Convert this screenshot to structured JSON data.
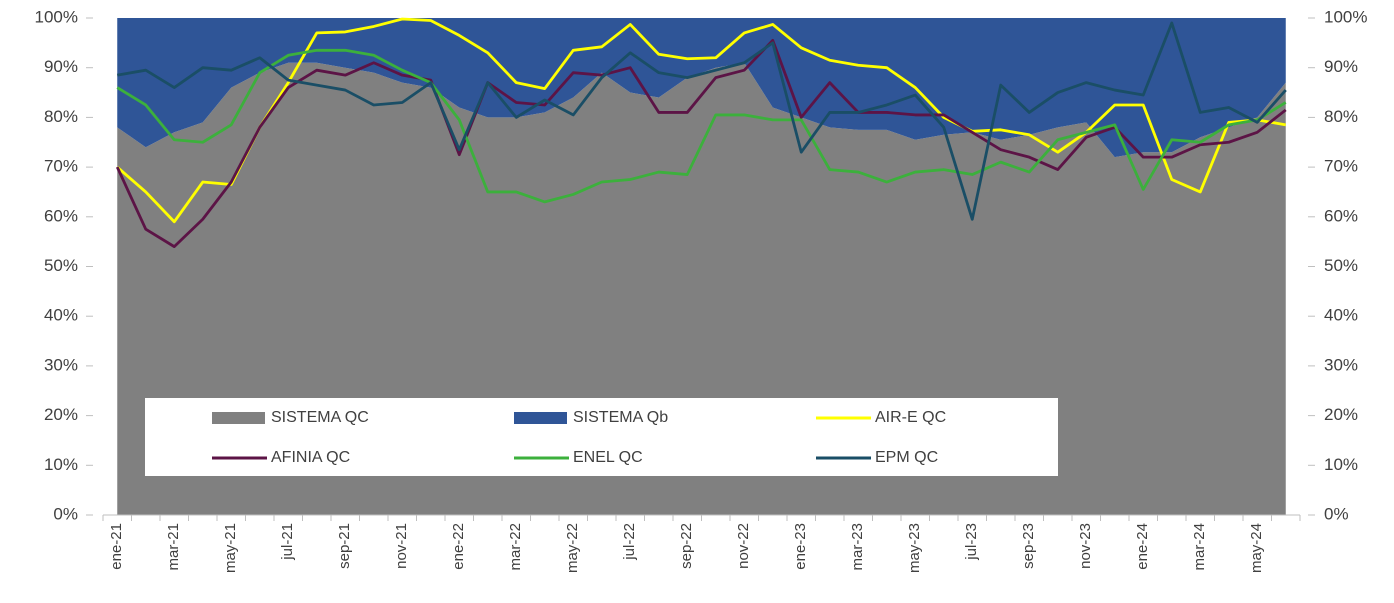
{
  "chart_data": {
    "type": "area",
    "stacked": true,
    "categories": [
      "ene-21",
      null,
      "mar-21",
      null,
      "may-21",
      null,
      "jul-21",
      null,
      "sep-21",
      null,
      "nov-21",
      null,
      "ene-22",
      null,
      "mar-22",
      null,
      "may-22",
      null,
      "jul-22",
      null,
      "sep-22",
      null,
      "nov-22",
      null,
      "ene-23",
      null,
      "mar-23",
      null,
      "may-23",
      null,
      "jul-23",
      null,
      "sep-23",
      null,
      "nov-23",
      null,
      "ene-24",
      null,
      "mar-24",
      null,
      "may-24",
      null
    ],
    "series": [
      {
        "name": "SISTEMA QC",
        "type": "area",
        "color": "#808080",
        "values": [
          78,
          74,
          77,
          79,
          86,
          89,
          91,
          91,
          90,
          89,
          87,
          86,
          82,
          80,
          80,
          81,
          84,
          89,
          85,
          84,
          88,
          90,
          91,
          82,
          80,
          78,
          77.5,
          77.5,
          75.5,
          76.5,
          77,
          75.5,
          76.5,
          78,
          79,
          72,
          73,
          73,
          76,
          78,
          80,
          87
        ]
      },
      {
        "name": "SISTEMA Qb",
        "type": "area",
        "color": "#2f5597",
        "values": [
          22,
          26,
          23,
          21,
          14,
          11,
          9,
          9,
          10,
          11,
          13,
          14,
          18,
          20,
          20,
          19,
          16,
          11,
          15,
          16,
          12,
          10,
          9,
          18,
          20,
          22,
          22.5,
          22.5,
          24.5,
          23.5,
          23,
          24.5,
          23.5,
          22,
          21,
          28,
          27,
          27,
          24,
          22,
          20,
          13
        ]
      },
      {
        "name": "AIR-E QC",
        "type": "line",
        "axis": "y2",
        "color": "#ffff00",
        "values": [
          70,
          65,
          59,
          67,
          66.5,
          78,
          87,
          97,
          97.2,
          98.3,
          99.8,
          99.5,
          96.5,
          93,
          87,
          85.8,
          93.5,
          94.2,
          98.7,
          92.7,
          91.8,
          92,
          97,
          98.7,
          94,
          91.5,
          90.5,
          90,
          86,
          80,
          77.2,
          77.5,
          76.5,
          73,
          77,
          82.5,
          82.5,
          67.5,
          65,
          79,
          79.5,
          78.5
        ]
      },
      {
        "name": "AFINIA QC",
        "type": "line",
        "axis": "y2",
        "color": "#5c1446",
        "values": [
          70,
          57.5,
          54,
          59.5,
          67,
          78,
          86,
          89.5,
          88.5,
          91,
          88.5,
          87.5,
          72.5,
          87,
          83,
          82.5,
          89,
          88.5,
          90,
          81,
          81,
          88,
          89.5,
          95.5,
          80,
          87,
          81,
          81,
          80.5,
          80.5,
          77,
          73.5,
          72,
          69.5,
          76,
          78,
          72,
          72,
          74.5,
          75,
          77,
          81.5
        ]
      },
      {
        "name": "ENEL QC",
        "type": "line",
        "axis": "y2",
        "color": "#3cb03c",
        "values": [
          86,
          82.5,
          75.5,
          75,
          78.5,
          89,
          92.5,
          93.5,
          93.5,
          92.5,
          89.5,
          87,
          79.5,
          65,
          65,
          63,
          64.5,
          67,
          67.5,
          69,
          68.5,
          80.5,
          80.5,
          79.5,
          79.5,
          69.5,
          69,
          67,
          69,
          69.5,
          68.5,
          71,
          69,
          75.5,
          77,
          78.5,
          65.5,
          75.5,
          75,
          78.5,
          79.5,
          83
        ]
      },
      {
        "name": "EPM QC",
        "type": "line",
        "axis": "y2",
        "color": "#1a4e66",
        "values": [
          88.5,
          89.5,
          86,
          90,
          89.5,
          92,
          87.5,
          86.5,
          85.5,
          82.5,
          83,
          87,
          73.5,
          87,
          80,
          83.5,
          80.5,
          88,
          93,
          89,
          88,
          89.5,
          91,
          95,
          73,
          81,
          81,
          82.5,
          84.5,
          78,
          59.5,
          86.5,
          81,
          85,
          87,
          85.5,
          84.5,
          99,
          81,
          82,
          79,
          85.5
        ]
      }
    ],
    "ylim": [
      0,
      100
    ],
    "yticks": [
      {
        "value": 0,
        "label": "0%"
      },
      {
        "value": 10,
        "label": "10%"
      },
      {
        "value": 20,
        "label": "20%"
      },
      {
        "value": 30,
        "label": "30%"
      },
      {
        "value": 40,
        "label": "40%"
      },
      {
        "value": 50,
        "label": "50%"
      },
      {
        "value": 60,
        "label": "60%"
      },
      {
        "value": 70,
        "label": "70%"
      },
      {
        "value": 80,
        "label": "80%"
      },
      {
        "value": 90,
        "label": "90%"
      },
      {
        "value": 100,
        "label": "100%"
      }
    ],
    "y2lim": [
      0,
      100
    ],
    "y2ticks": [
      {
        "value": 0,
        "label": "0%"
      },
      {
        "value": 10,
        "label": "10%"
      },
      {
        "value": 20,
        "label": "20%"
      },
      {
        "value": 30,
        "label": "30%"
      },
      {
        "value": 40,
        "label": "40%"
      },
      {
        "value": 50,
        "label": "50%"
      },
      {
        "value": 60,
        "label": "60%"
      },
      {
        "value": 70,
        "label": "70%"
      },
      {
        "value": 80,
        "label": "80%"
      },
      {
        "value": 90,
        "label": "90%"
      },
      {
        "value": 100,
        "label": "100%"
      }
    ],
    "grid": false
  }
}
